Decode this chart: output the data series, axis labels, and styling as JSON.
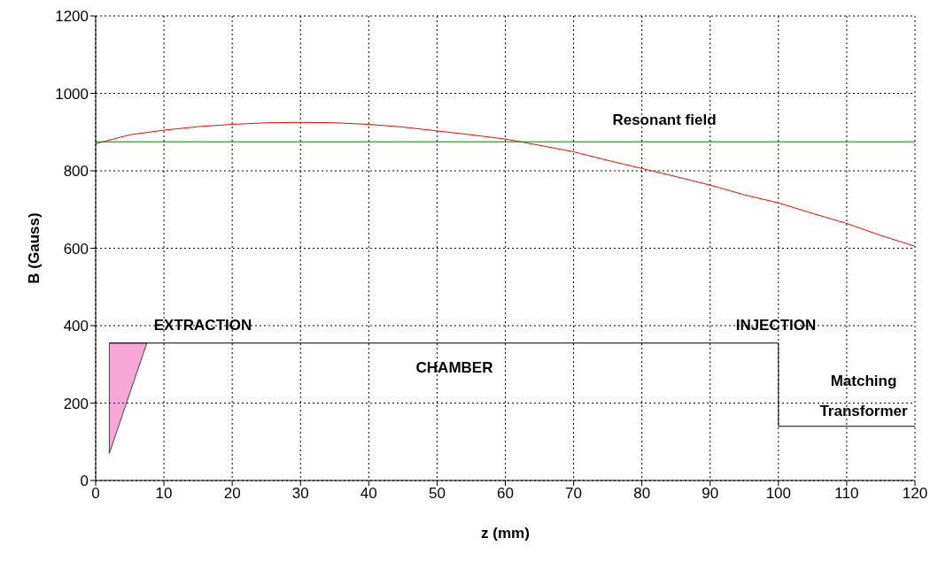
{
  "chart_data": {
    "type": "line",
    "xlabel": "z (mm)",
    "ylabel": "B (Gauss)",
    "xlim": [
      0,
      120
    ],
    "ylim": [
      0,
      1200
    ],
    "xticks": [
      0,
      10,
      20,
      30,
      40,
      50,
      60,
      70,
      80,
      90,
      100,
      110,
      120
    ],
    "yticks": [
      0,
      200,
      400,
      600,
      800,
      1000,
      1200
    ],
    "grid": true,
    "marker": "none",
    "line_style": "solid",
    "series": [
      {
        "color": "#ff0000",
        "x": [
          0,
          5,
          10,
          15,
          20,
          25,
          30,
          35,
          40,
          45,
          50,
          55,
          60,
          65,
          70,
          75,
          80,
          85,
          90,
          95,
          100,
          105,
          110,
          115,
          120
        ],
        "values": [
          870,
          893,
          905,
          914,
          920,
          924,
          925,
          924,
          920,
          913,
          903,
          893,
          882,
          866,
          849,
          827,
          806,
          785,
          763,
          738,
          717,
          690,
          664,
          633,
          605
        ]
      },
      {
        "color": "#008000",
        "x": [
          0,
          120
        ],
        "values": [
          875,
          875
        ]
      },
      {
        "color": "#000000",
        "x": [
          2,
          100,
          100,
          120
        ],
        "values": [
          355,
          355,
          140,
          140
        ]
      }
    ],
    "annotations": [
      "Resonant field",
      "EXTRACTION",
      "CHAMBER",
      "INJECTION",
      "Matching\nTransformer"
    ]
  }
}
